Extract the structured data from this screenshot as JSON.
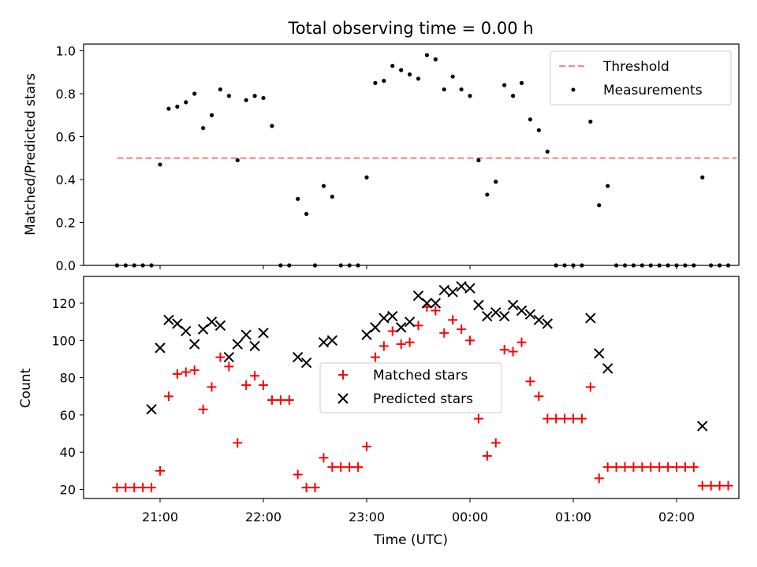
{
  "chart_data": [
    {
      "type": "scatter",
      "title": "Total observing time = 0.00 h",
      "xlabel": "",
      "ylabel": "Matched/Predicted stars",
      "ylim": [
        0,
        1.03
      ],
      "yticks": [
        "0.0",
        "0.2",
        "0.4",
        "0.6",
        "0.8",
        "1.0"
      ],
      "legend": {
        "position": "upper right",
        "entries": [
          "Threshold",
          "Measurements"
        ]
      },
      "threshold": {
        "name": "Threshold",
        "value": 0.5,
        "x_range": [
          "20:35",
          "02:35"
        ],
        "color": "#ff8080",
        "style": "dashed"
      },
      "series": [
        {
          "name": "Measurements",
          "color": "#000000",
          "marker": "dot",
          "x": [
            "20:35",
            "20:40",
            "20:45",
            "20:50",
            "20:55",
            "21:00",
            "21:05",
            "21:10",
            "21:15",
            "21:20",
            "21:25",
            "21:30",
            "21:35",
            "21:40",
            "21:45",
            "21:50",
            "21:55",
            "22:00",
            "22:05",
            "22:10",
            "22:15",
            "22:20",
            "22:25",
            "22:30",
            "22:35",
            "22:40",
            "22:45",
            "22:50",
            "22:55",
            "23:00",
            "23:05",
            "23:10",
            "23:15",
            "23:20",
            "23:25",
            "23:30",
            "23:35",
            "23:40",
            "23:45",
            "23:50",
            "23:55",
            "00:00",
            "00:05",
            "00:10",
            "00:15",
            "00:20",
            "00:25",
            "00:30",
            "00:35",
            "00:40",
            "00:45",
            "00:50",
            "00:55",
            "01:00",
            "01:05",
            "01:10",
            "01:15",
            "01:20",
            "01:25",
            "01:30",
            "01:35",
            "01:40",
            "01:45",
            "01:50",
            "01:55",
            "02:00",
            "02:05",
            "02:10",
            "02:15",
            "02:20",
            "02:25",
            "02:30"
          ],
          "y": [
            0,
            0,
            0,
            0,
            0,
            0.47,
            0.73,
            0.74,
            0.76,
            0.8,
            0.64,
            0.7,
            0.82,
            0.79,
            0.49,
            0.77,
            0.79,
            0.78,
            0.65,
            0,
            0,
            0.31,
            0.24,
            0,
            0.37,
            0.32,
            0,
            0,
            0,
            0.41,
            0.85,
            0.86,
            0.93,
            0.91,
            0.89,
            0.87,
            0.98,
            0.96,
            0.82,
            0.88,
            0.82,
            0.79,
            0.49,
            0.33,
            0.39,
            0.84,
            0.79,
            0.85,
            0.68,
            0.63,
            0.53,
            0,
            0,
            0,
            0,
            0.67,
            0.28,
            0.37,
            0,
            0,
            0,
            0,
            0,
            0,
            0,
            0,
            0,
            0,
            0.41,
            0,
            0,
            0
          ]
        }
      ]
    },
    {
      "type": "scatter",
      "title": "",
      "xlabel": "Time (UTC)",
      "ylabel": "Count",
      "ylim": [
        15,
        134
      ],
      "yticks": [
        "20",
        "40",
        "60",
        "80",
        "100",
        "120"
      ],
      "xticks": [
        "21:00",
        "22:00",
        "23:00",
        "00:00",
        "01:00",
        "02:00"
      ],
      "legend": {
        "position": "center",
        "entries": [
          "Matched stars",
          "Predicted stars"
        ]
      },
      "series": [
        {
          "name": "Matched stars",
          "color": "#ff0000",
          "marker": "plus",
          "x": [
            "20:35",
            "20:40",
            "20:45",
            "20:50",
            "20:55",
            "21:00",
            "21:05",
            "21:10",
            "21:15",
            "21:20",
            "21:25",
            "21:30",
            "21:35",
            "21:40",
            "21:45",
            "21:50",
            "21:55",
            "22:00",
            "22:05",
            "22:10",
            "22:15",
            "22:20",
            "22:25",
            "22:30",
            "22:35",
            "22:40",
            "22:45",
            "22:50",
            "22:55",
            "23:00",
            "23:05",
            "23:10",
            "23:15",
            "23:20",
            "23:25",
            "23:30",
            "23:35",
            "23:40",
            "23:45",
            "23:50",
            "23:55",
            "00:00",
            "00:05",
            "00:10",
            "00:15",
            "00:20",
            "00:25",
            "00:30",
            "00:35",
            "00:40",
            "00:45",
            "00:50",
            "00:55",
            "01:00",
            "01:05",
            "01:10",
            "01:15",
            "01:20",
            "01:25",
            "01:30",
            "01:35",
            "01:40",
            "01:45",
            "01:50",
            "01:55",
            "02:00",
            "02:05",
            "02:10",
            "02:15",
            "02:20",
            "02:25",
            "02:30"
          ],
          "y": [
            21,
            21,
            21,
            21,
            21,
            30,
            70,
            82,
            83,
            84,
            63,
            75,
            91,
            86,
            45,
            76,
            81,
            76,
            68,
            68,
            68,
            28,
            21,
            21,
            37,
            32,
            32,
            32,
            32,
            43,
            91,
            97,
            105,
            98,
            99,
            108,
            118,
            116,
            104,
            111,
            106,
            100,
            58,
            38,
            45,
            95,
            94,
            99,
            78,
            70,
            58,
            58,
            58,
            58,
            58,
            75,
            26,
            32,
            32,
            32,
            32,
            32,
            32,
            32,
            32,
            32,
            32,
            32,
            22,
            22,
            22,
            22
          ]
        },
        {
          "name": "Predicted stars",
          "color": "#000000",
          "marker": "x",
          "x": [
            "20:55",
            "21:00",
            "21:05",
            "21:10",
            "21:15",
            "21:20",
            "21:25",
            "21:30",
            "21:35",
            "21:40",
            "21:45",
            "21:50",
            "21:55",
            "22:00",
            "22:20",
            "22:25",
            "22:35",
            "22:40",
            "23:00",
            "23:05",
            "23:10",
            "23:15",
            "23:20",
            "23:25",
            "23:30",
            "23:35",
            "23:40",
            "23:45",
            "23:50",
            "23:55",
            "00:00",
            "00:05",
            "00:10",
            "00:15",
            "00:20",
            "00:25",
            "00:30",
            "00:35",
            "00:40",
            "00:45",
            "01:10",
            "01:15",
            "01:20",
            "02:15"
          ],
          "y": [
            63,
            96,
            111,
            109,
            105,
            98,
            106,
            110,
            108,
            91,
            98,
            103,
            97,
            104,
            91,
            88,
            99,
            100,
            103,
            107,
            112,
            113,
            107,
            110,
            124,
            120,
            120,
            127,
            126,
            129,
            128,
            119,
            113,
            115,
            113,
            119,
            116,
            114,
            111,
            109,
            112,
            93,
            85,
            54
          ]
        }
      ]
    }
  ]
}
